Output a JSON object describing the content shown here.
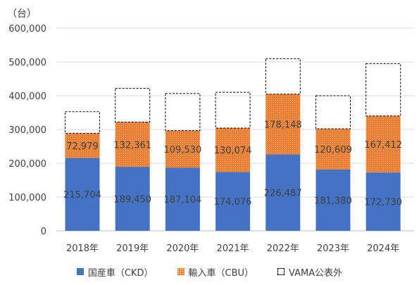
{
  "unit_label": "（台）",
  "chart_data": {
    "type": "bar",
    "stacked": true,
    "categories": [
      "2018年",
      "2019年",
      "2020年",
      "2021年",
      "2022年",
      "2023年",
      "2024年"
    ],
    "y_ticks": [
      "0",
      "100,000",
      "200,000",
      "300,000",
      "400,000",
      "500,000",
      "600,000"
    ],
    "ylim": [
      0,
      600000
    ],
    "grid": true,
    "legend_position": "bottom",
    "series": [
      {
        "name": "国産車（CKD）",
        "color": "#4472C4",
        "values": [
          215704,
          189450,
          187104,
          174076,
          226487,
          181380,
          172730
        ],
        "labels": [
          "215,704",
          "189,450",
          "187,104",
          "174,076",
          "226,487",
          "181,380",
          "172,730"
        ]
      },
      {
        "name": "輸入車（CBU）",
        "color": "#ED7D31",
        "values": [
          72979,
          132361,
          109530,
          130074,
          178148,
          120609,
          167412
        ],
        "labels": [
          "72,979",
          "132,361",
          "109,530",
          "130,074",
          "178,148",
          "120,609",
          "167,412"
        ]
      },
      {
        "name": "VAMA公表外",
        "color": "#000000",
        "style": "dashed-outline",
        "values": [
          64000,
          100000,
          110000,
          106000,
          105000,
          98000,
          155000
        ]
      }
    ]
  }
}
